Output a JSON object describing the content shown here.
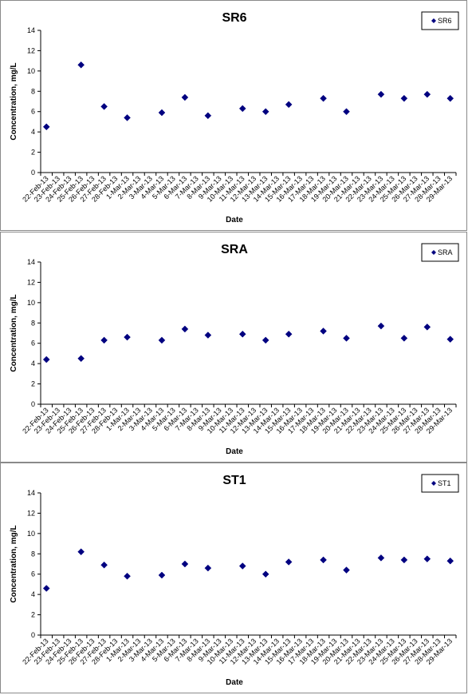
{
  "colors": {
    "marker": "#000080",
    "axis": "#000000",
    "frame": "#8a8a8a"
  },
  "chart_data": [
    {
      "type": "scatter",
      "title": "SR6",
      "xlabel": "Date",
      "ylabel": "Concentration, mg/L",
      "ylim": [
        0,
        14
      ],
      "yticks": [
        "0",
        "2",
        "4",
        "6",
        "8",
        "10",
        "12",
        "14"
      ],
      "grid": false,
      "legend": "top-right",
      "series": [
        {
          "name": "SR6",
          "marker": "diamond",
          "points": [
            {
              "x": "22-Feb-13",
              "y": 4.5
            },
            {
              "x": "25-Feb-13",
              "y": 10.6
            },
            {
              "x": "27-Feb-13",
              "y": 6.5
            },
            {
              "x": "1-Mar-13",
              "y": 5.4
            },
            {
              "x": "4-Mar-13",
              "y": 5.9
            },
            {
              "x": "6-Mar-13",
              "y": 7.4
            },
            {
              "x": "8-Mar-13",
              "y": 5.6
            },
            {
              "x": "11-Mar-13",
              "y": 6.3
            },
            {
              "x": "13-Mar-13",
              "y": 6.0
            },
            {
              "x": "15-Mar-13",
              "y": 6.7
            },
            {
              "x": "18-Mar-13",
              "y": 7.3
            },
            {
              "x": "20-Mar-13",
              "y": 6.0
            },
            {
              "x": "23-Mar-13",
              "y": 7.7
            },
            {
              "x": "25-Mar-13",
              "y": 7.3
            },
            {
              "x": "27-Mar-13",
              "y": 7.7
            },
            {
              "x": "29-Mar-13",
              "y": 7.3
            }
          ]
        }
      ]
    },
    {
      "type": "scatter",
      "title": "SRA",
      "xlabel": "Date",
      "ylabel": "Concentration, mg/L",
      "ylim": [
        0,
        14
      ],
      "yticks": [
        "0",
        "2",
        "4",
        "6",
        "8",
        "10",
        "12",
        "14"
      ],
      "grid": false,
      "legend": "top-right",
      "series": [
        {
          "name": "SRA",
          "marker": "diamond",
          "points": [
            {
              "x": "22-Feb-13",
              "y": 4.4
            },
            {
              "x": "25-Feb-13",
              "y": 4.5
            },
            {
              "x": "27-Feb-13",
              "y": 6.3
            },
            {
              "x": "1-Mar-13",
              "y": 6.6
            },
            {
              "x": "4-Mar-13",
              "y": 6.3
            },
            {
              "x": "6-Mar-13",
              "y": 7.4
            },
            {
              "x": "8-Mar-13",
              "y": 6.8
            },
            {
              "x": "11-Mar-13",
              "y": 6.9
            },
            {
              "x": "13-Mar-13",
              "y": 6.3
            },
            {
              "x": "15-Mar-13",
              "y": 6.9
            },
            {
              "x": "18-Mar-13",
              "y": 7.2
            },
            {
              "x": "20-Mar-13",
              "y": 6.5
            },
            {
              "x": "23-Mar-13",
              "y": 7.7
            },
            {
              "x": "25-Mar-13",
              "y": 6.5
            },
            {
              "x": "27-Mar-13",
              "y": 7.6
            },
            {
              "x": "29-Mar-13",
              "y": 6.4
            }
          ]
        }
      ]
    },
    {
      "type": "scatter",
      "title": "ST1",
      "xlabel": "Date",
      "ylabel": "Concentration, mg/L",
      "ylim": [
        0,
        14
      ],
      "yticks": [
        "0",
        "2",
        "4",
        "6",
        "8",
        "10",
        "12",
        "14"
      ],
      "grid": false,
      "legend": "top-right",
      "series": [
        {
          "name": "ST1",
          "marker": "diamond",
          "points": [
            {
              "x": "22-Feb-13",
              "y": 4.6
            },
            {
              "x": "25-Feb-13",
              "y": 8.2
            },
            {
              "x": "27-Feb-13",
              "y": 6.9
            },
            {
              "x": "1-Mar-13",
              "y": 5.8
            },
            {
              "x": "4-Mar-13",
              "y": 5.9
            },
            {
              "x": "6-Mar-13",
              "y": 7.0
            },
            {
              "x": "8-Mar-13",
              "y": 6.6
            },
            {
              "x": "11-Mar-13",
              "y": 6.8
            },
            {
              "x": "13-Mar-13",
              "y": 6.0
            },
            {
              "x": "15-Mar-13",
              "y": 7.2
            },
            {
              "x": "18-Mar-13",
              "y": 7.4
            },
            {
              "x": "20-Mar-13",
              "y": 6.4
            },
            {
              "x": "23-Mar-13",
              "y": 7.6
            },
            {
              "x": "25-Mar-13",
              "y": 7.4
            },
            {
              "x": "27-Mar-13",
              "y": 7.5
            },
            {
              "x": "29-Mar-13",
              "y": 7.3
            }
          ]
        }
      ]
    }
  ],
  "x_categories": [
    "22-Feb-13",
    "23-Feb-13",
    "24-Feb-13",
    "25-Feb-13",
    "26-Feb-13",
    "27-Feb-13",
    "28-Feb-13",
    "1-Mar-13",
    "2-Mar-13",
    "3-Mar-13",
    "4-Mar-13",
    "5-Mar-13",
    "6-Mar-13",
    "7-Mar-13",
    "8-Mar-13",
    "9-Mar-13",
    "10-Mar-13",
    "11-Mar-13",
    "12-Mar-13",
    "13-Mar-13",
    "14-Mar-13",
    "15-Mar-13",
    "16-Mar-13",
    "17-Mar-13",
    "18-Mar-13",
    "19-Mar-13",
    "20-Mar-13",
    "21-Mar-13",
    "22-Mar-13",
    "23-Mar-13",
    "24-Mar-13",
    "25-Mar-13",
    "26-Mar-13",
    "27-Mar-13",
    "28-Mar-13",
    "29-Mar-13"
  ]
}
